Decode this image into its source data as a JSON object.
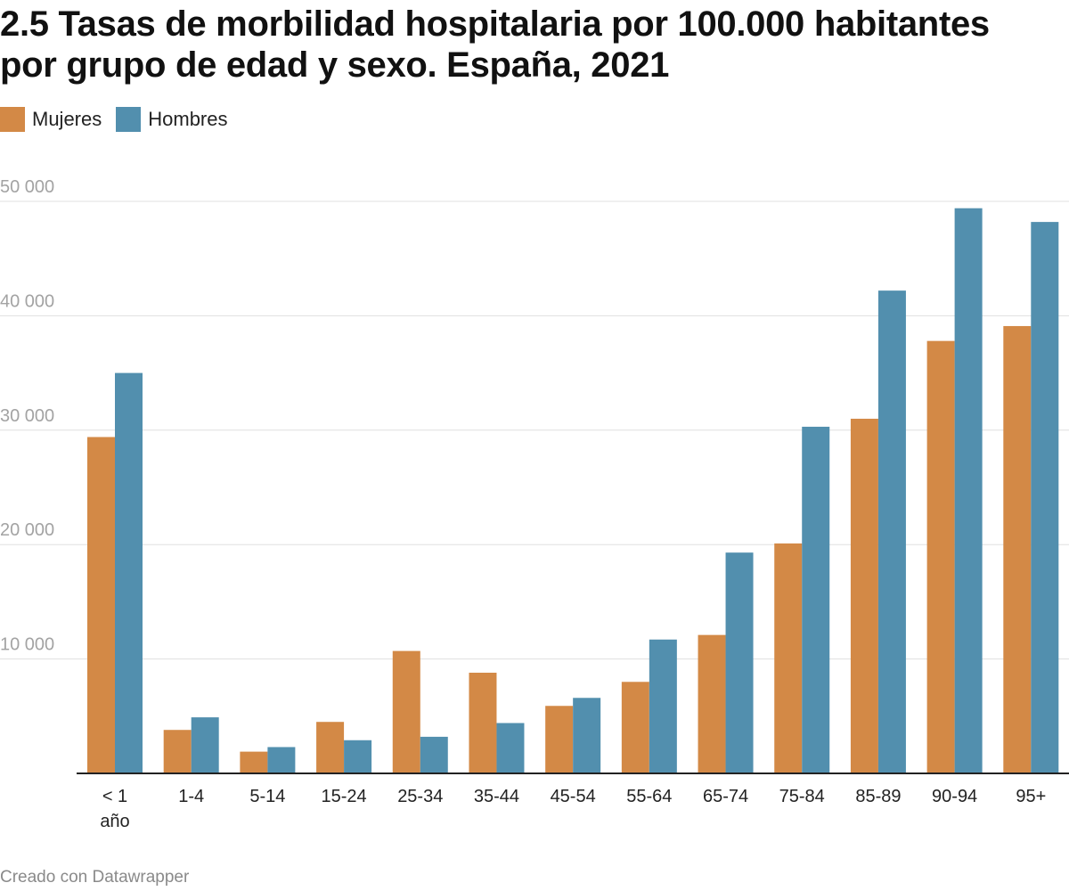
{
  "chart_data": {
    "type": "bar",
    "title_lines": [
      "2.5 Tasas de morbilidad hospitalaria por 100.000 habitantes",
      "por grupo de edad y sexo. España, 2021"
    ],
    "categories": [
      [
        "< 1",
        "año"
      ],
      [
        "1-4"
      ],
      [
        "5-14"
      ],
      [
        "15-24"
      ],
      [
        "25-34"
      ],
      [
        "35-44"
      ],
      [
        "45-54"
      ],
      [
        "55-64"
      ],
      [
        "65-74"
      ],
      [
        "75-84"
      ],
      [
        "85-89"
      ],
      [
        "90-94"
      ],
      [
        "95+"
      ]
    ],
    "series": [
      {
        "name": "Mujeres",
        "color": "#d38946",
        "values": [
          29400,
          3800,
          1900,
          4500,
          10700,
          8800,
          5900,
          8000,
          12100,
          20100,
          31000,
          37800,
          39100
        ]
      },
      {
        "name": "Hombres",
        "color": "#528fae",
        "values": [
          35000,
          4900,
          2300,
          2900,
          3200,
          4400,
          6600,
          11700,
          19300,
          30300,
          42200,
          49400,
          48200
        ]
      }
    ],
    "y_ticks": [
      {
        "value": 10000,
        "label": "10 000"
      },
      {
        "value": 20000,
        "label": "20 000"
      },
      {
        "value": 30000,
        "label": "30 000"
      },
      {
        "value": 40000,
        "label": "40 000"
      },
      {
        "value": 50000,
        "label": "50 000"
      }
    ],
    "ylim": [
      0,
      50000
    ],
    "grid": true,
    "legend_position": "top-left",
    "xlabel": "",
    "ylabel": ""
  },
  "footer": "Creado con Datawrapper"
}
